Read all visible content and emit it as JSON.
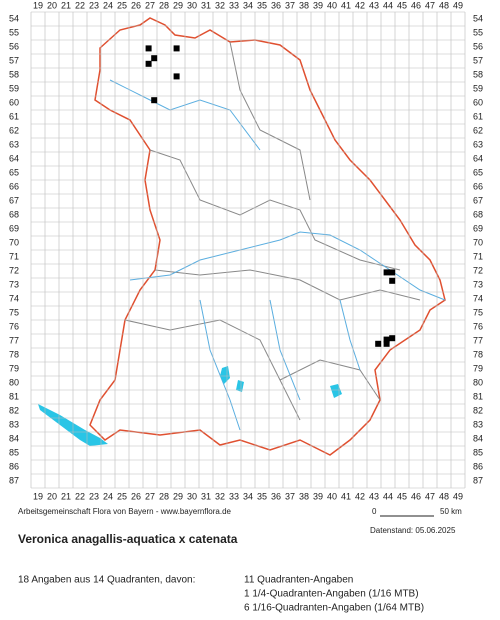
{
  "columns": [
    19,
    20,
    21,
    22,
    23,
    24,
    25,
    26,
    27,
    28,
    29,
    30,
    31,
    32,
    33,
    34,
    35,
    36,
    37,
    38,
    39,
    40,
    41,
    42,
    43,
    44,
    45,
    46,
    47,
    48,
    49
  ],
  "rows": [
    54,
    55,
    56,
    57,
    58,
    59,
    60,
    61,
    62,
    63,
    64,
    65,
    66,
    67,
    68,
    69,
    70,
    71,
    72,
    73,
    74,
    75,
    76,
    77,
    78,
    79,
    80,
    81,
    82,
    83,
    84,
    85,
    86,
    87
  ],
  "points": [
    {
      "x": 26.9,
      "y": 56.1
    },
    {
      "x": 28.9,
      "y": 56.1
    },
    {
      "x": 27.3,
      "y": 56.8
    },
    {
      "x": 26.9,
      "y": 57.2
    },
    {
      "x": 28.9,
      "y": 58.1
    },
    {
      "x": 27.3,
      "y": 59.8
    },
    {
      "x": 43.9,
      "y": 72.1
    },
    {
      "x": 44.3,
      "y": 72.1
    },
    {
      "x": 44.3,
      "y": 72.7
    },
    {
      "x": 43.9,
      "y": 76.9
    },
    {
      "x": 44.3,
      "y": 76.8
    },
    {
      "x": 43.3,
      "y": 77.2
    },
    {
      "x": 43.9,
      "y": 77.2
    }
  ],
  "credit": "Arbeitsgemeinschaft Flora von Bayern - www.bayernflora.de",
  "scale": {
    "start": "0",
    "end": "50 km"
  },
  "date": "Datenstand: 05.06.2025",
  "title": "Veronica anagallis-aquatica x catenata",
  "summary": "18 Angaben aus 14 Quadranten, davon:",
  "breakdown": [
    "11 Quadranten-Angaben",
    "1 1/4-Quadranten-Angaben (1/16 MTB)",
    "6 1/16-Quadranten-Angaben (1/64 MTB)"
  ]
}
